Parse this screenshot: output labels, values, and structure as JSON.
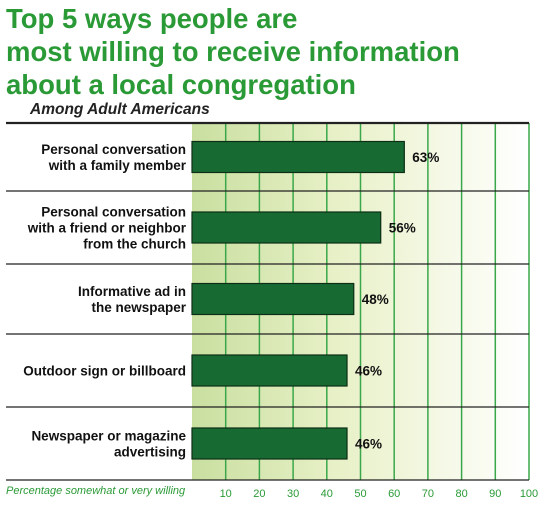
{
  "title_lines": [
    "Top 5 ways people are",
    "most willing to receive information",
    "about a local congregation"
  ],
  "subtitle": "Among Adult  Americans",
  "footnote": "Percentage somewhat or very willing",
  "colors": {
    "title": "#2a9a36",
    "bar": "#176a32",
    "grid": "#3aa84a"
  },
  "chart_data": {
    "type": "bar",
    "orientation": "horizontal",
    "title": "Top 5 ways people are most willing to receive information about a local congregation",
    "subtitle": "Among Adult  Americans",
    "xlabel": "Percentage somewhat or very willing",
    "xlim": [
      0,
      100
    ],
    "xticks": [
      10,
      20,
      30,
      40,
      50,
      60,
      70,
      80,
      90,
      100
    ],
    "grid": true,
    "categories": [
      [
        "Personal conversation",
        "with a family member"
      ],
      [
        "Personal conversation",
        "with a friend or neighbor",
        "from the church"
      ],
      [
        "Informative ad in",
        "the newspaper"
      ],
      [
        "Outdoor sign or billboard"
      ],
      [
        "Newspaper or magazine",
        "advertising"
      ]
    ],
    "values": [
      63,
      56,
      48,
      46,
      46
    ],
    "value_labels": [
      "63%",
      "56%",
      "48%",
      "46%",
      "46%"
    ]
  }
}
